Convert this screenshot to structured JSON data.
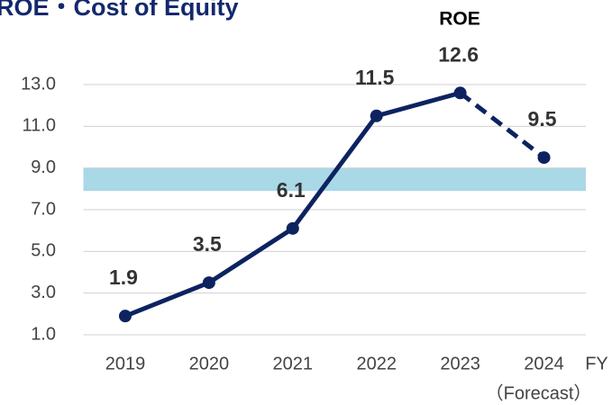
{
  "chart_data": {
    "type": "line",
    "title": "ROE・Cost of Equity",
    "categories": [
      "2019",
      "2020",
      "2021",
      "2022",
      "2023",
      "2024"
    ],
    "x_unit": "FY",
    "x_sublabel": "（Forecast）",
    "series": [
      {
        "name": "ROE",
        "color": "#0d2360",
        "values": [
          1.9,
          3.5,
          6.1,
          11.5,
          12.6,
          9.5
        ]
      }
    ],
    "forecast_start": 4,
    "band": {
      "range": [
        7.9,
        9.0
      ],
      "color": "#a9d8e6"
    },
    "ylim": [
      1,
      13
    ],
    "yticks": [
      {
        "value": 1,
        "label": "1.0"
      },
      {
        "value": 3,
        "label": "3.0"
      },
      {
        "value": 5,
        "label": "5.0"
      },
      {
        "value": 7,
        "label": "7.0"
      },
      {
        "value": 9,
        "label": "9.0"
      },
      {
        "value": 11,
        "label": "11.0"
      },
      {
        "value": 13,
        "label": "13.0"
      }
    ],
    "grid": true
  }
}
